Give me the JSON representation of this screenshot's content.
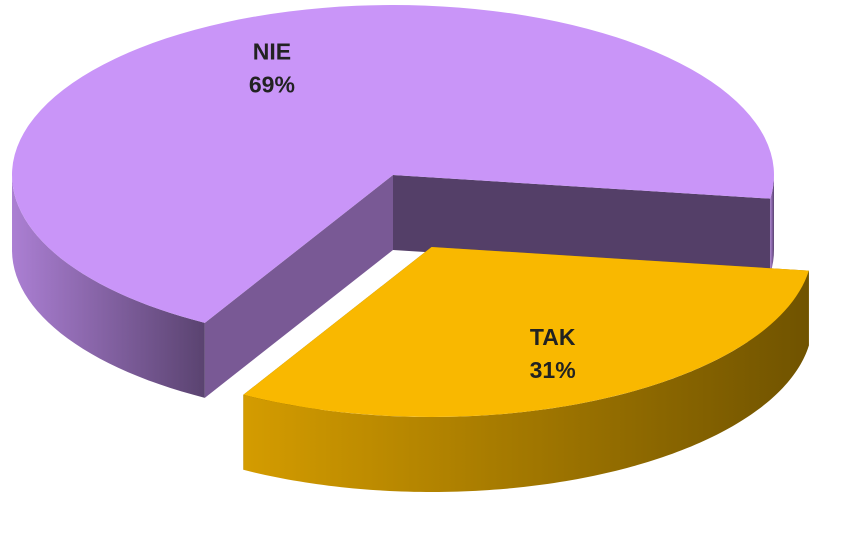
{
  "chart_data": {
    "type": "pie",
    "three_d": true,
    "exploded": [
      false,
      true
    ],
    "categories": [
      "NIE",
      "TAK"
    ],
    "values": [
      69,
      31
    ],
    "value_labels": [
      "69%",
      "31%"
    ],
    "colors": [
      "#c995f8",
      "#f9b800"
    ]
  }
}
